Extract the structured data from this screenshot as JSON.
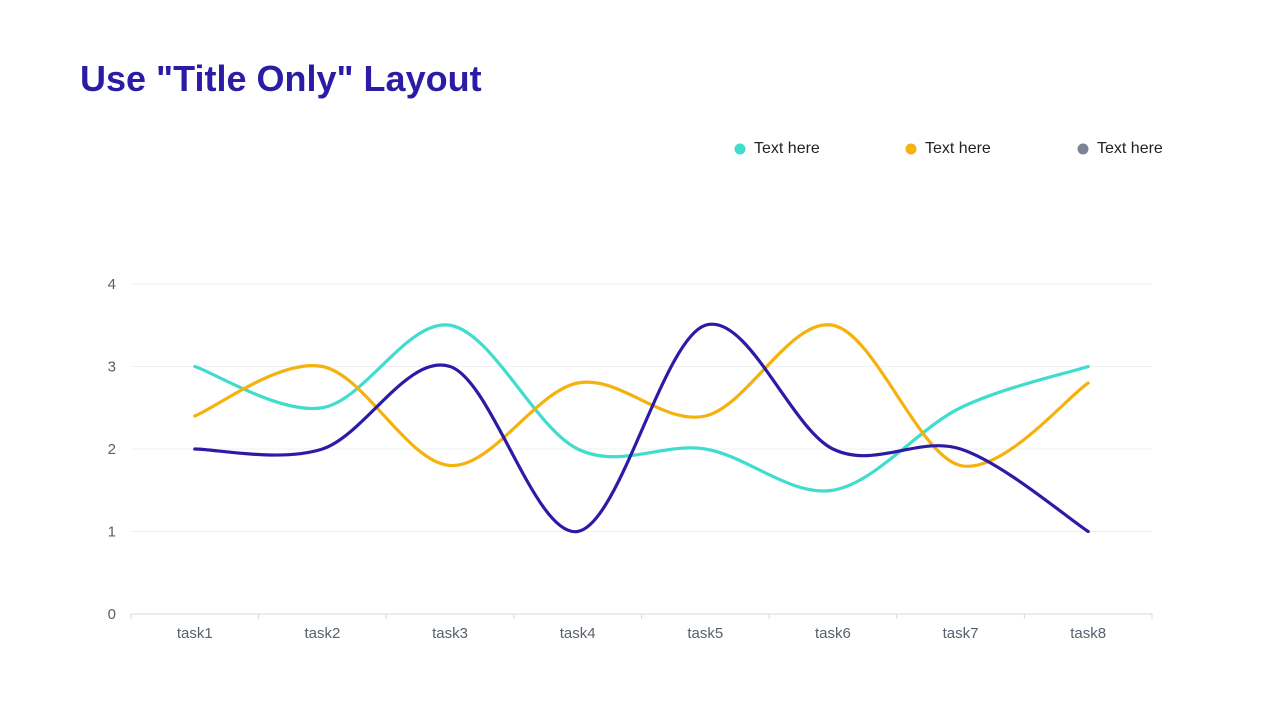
{
  "slide": {
    "title": "Use \"Title Only\" Layout"
  },
  "chart_data": {
    "type": "line",
    "smooth": true,
    "categories": [
      "task1",
      "task2",
      "task3",
      "task4",
      "task5",
      "task6",
      "task7",
      "task8"
    ],
    "ylim": [
      0,
      4
    ],
    "yticks": [
      "0",
      "1",
      "2",
      "3",
      "4"
    ],
    "grid": true,
    "legend_position": "top-right",
    "series": [
      {
        "name": "Text here",
        "color": "#40dcce",
        "values": [
          3,
          2.5,
          3.5,
          2,
          2,
          1.5,
          2.5,
          3
        ]
      },
      {
        "name": "Text here",
        "color": "#f5b10c",
        "values": [
          2.4,
          3,
          1.8,
          2.8,
          2.4,
          3.5,
          1.8,
          2.8
        ]
      },
      {
        "name": "Text here",
        "color": "#2b1ba5",
        "legend_color": "#7a8496",
        "values": [
          2,
          2,
          3,
          1,
          3.5,
          2,
          2,
          1
        ]
      }
    ]
  }
}
